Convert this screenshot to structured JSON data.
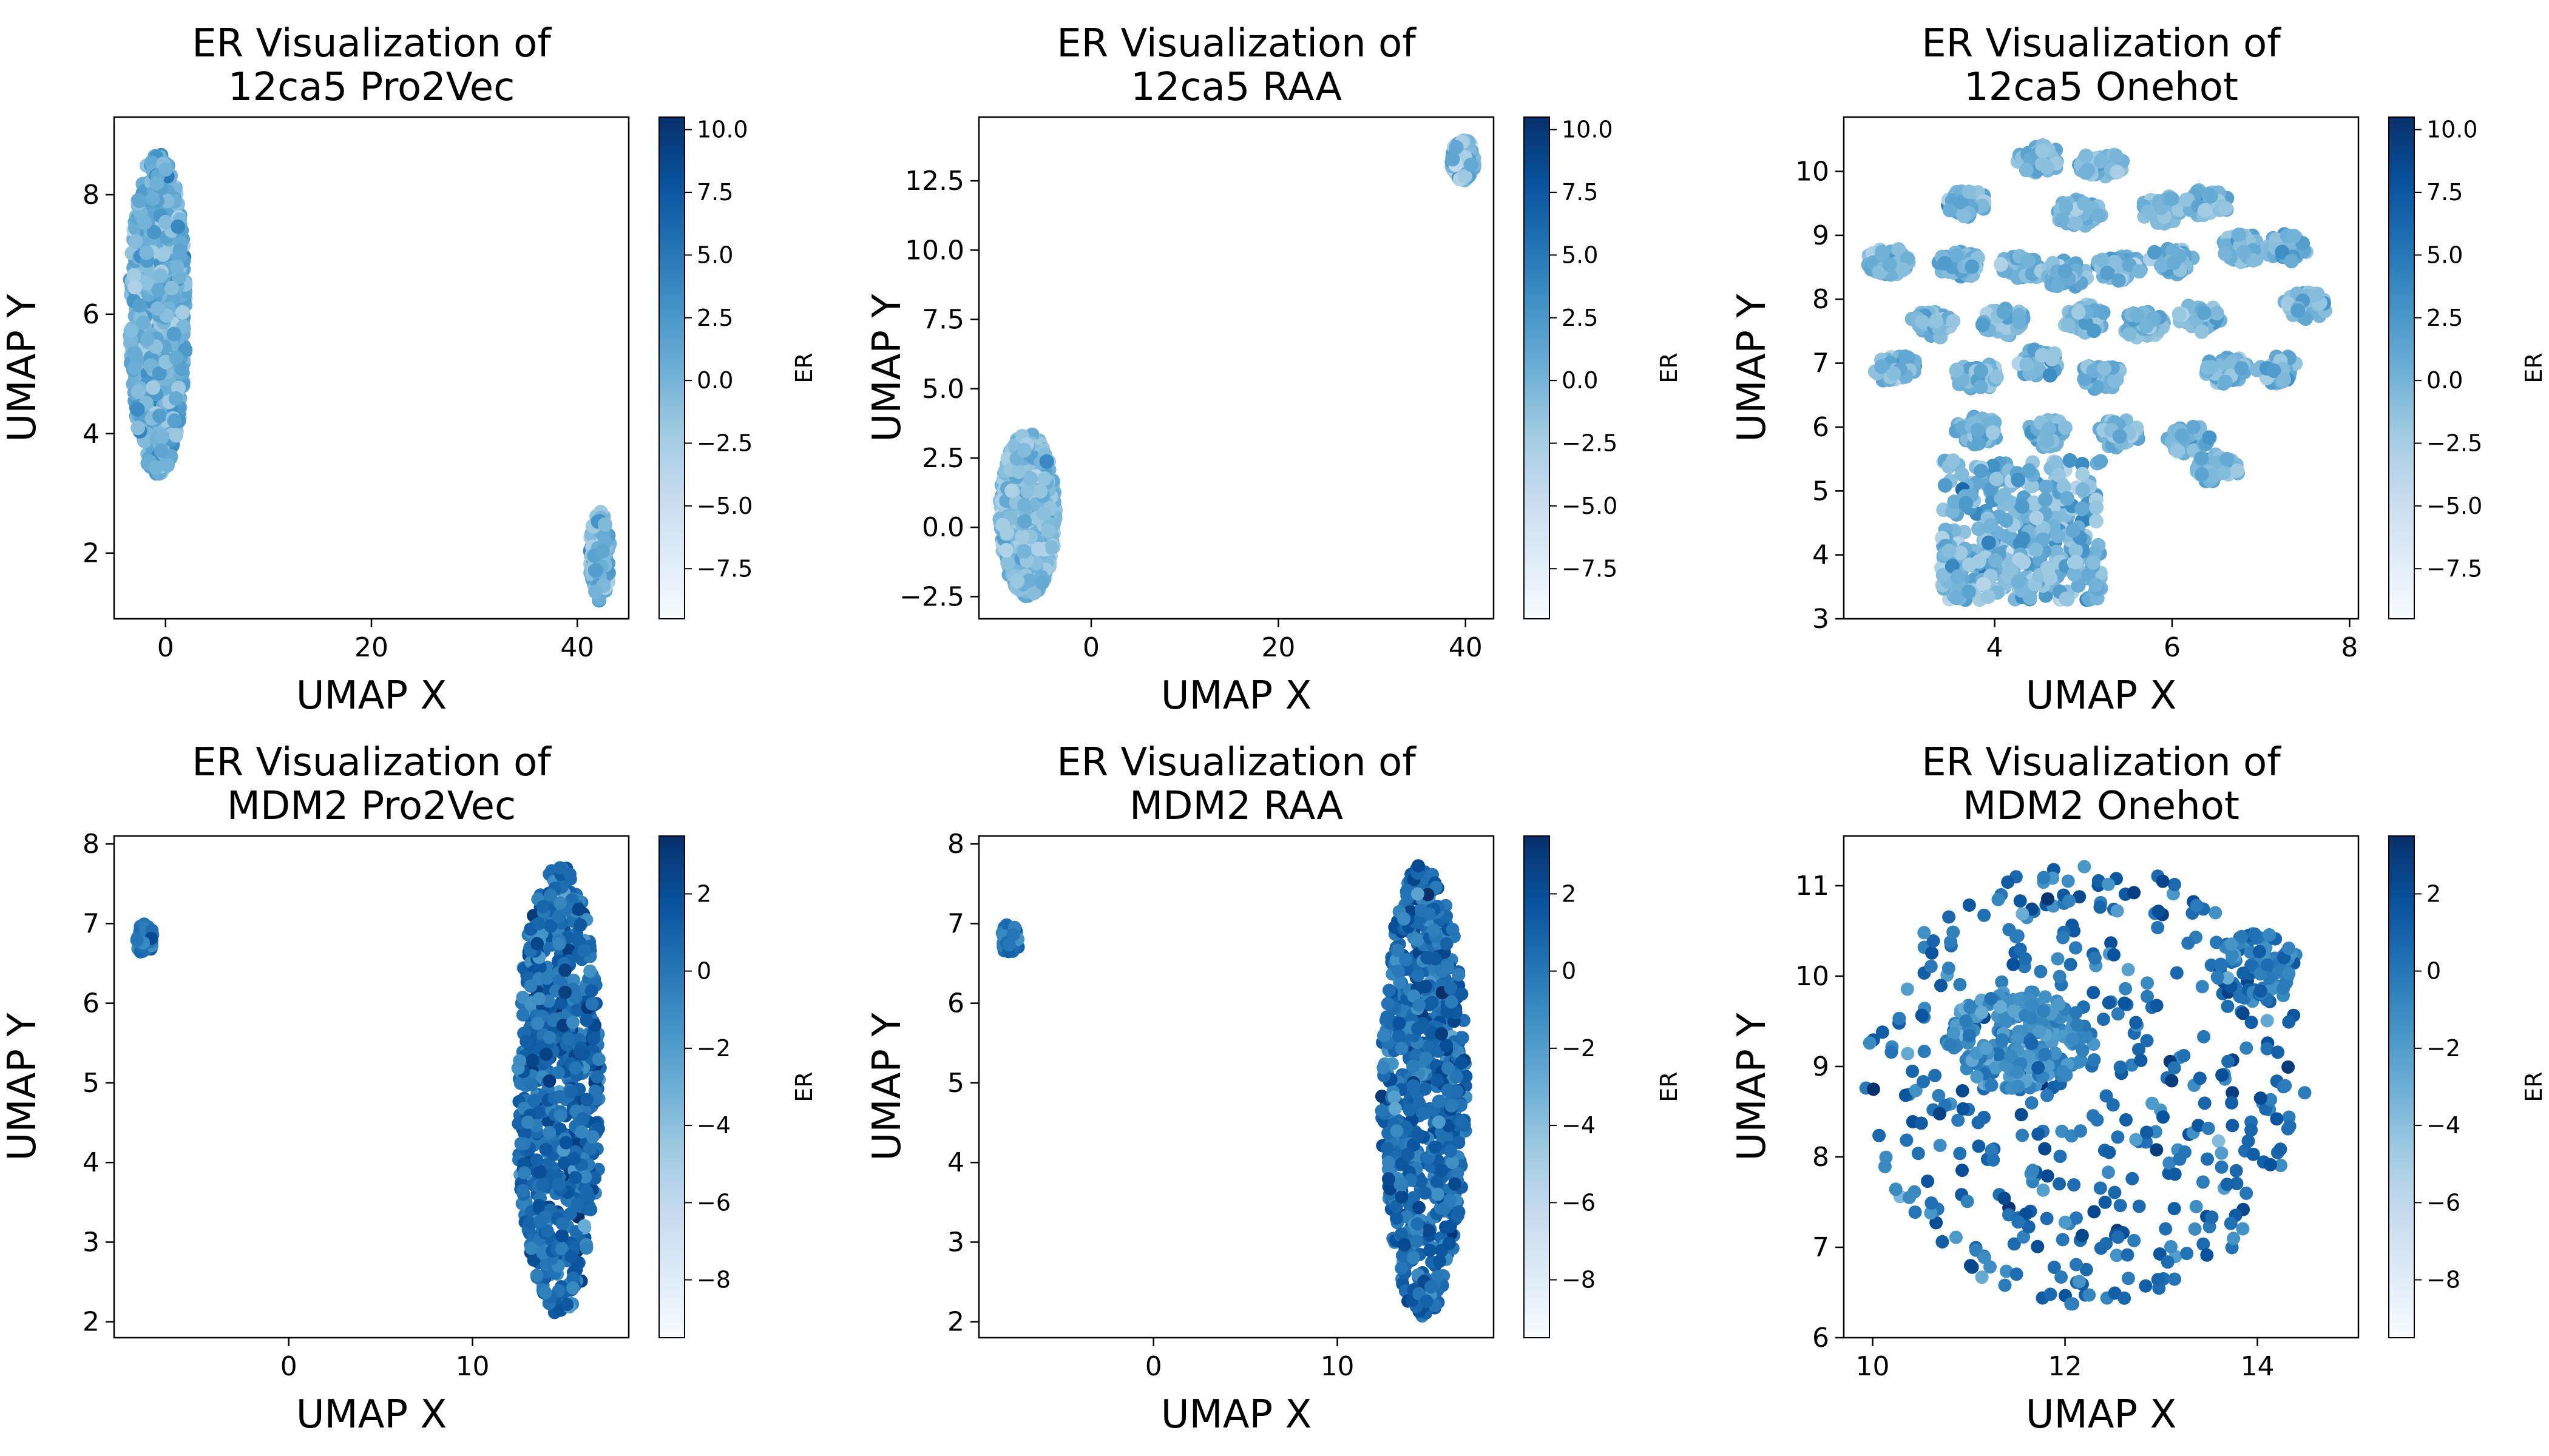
{
  "figure": {
    "colormap": [
      "#f7fbff",
      "#deebf7",
      "#c6dbef",
      "#9ecae1",
      "#6baed6",
      "#4292c6",
      "#2171b5",
      "#08519c",
      "#08306b"
    ]
  },
  "chart_data": [
    {
      "type": "scatter",
      "title_lines": [
        "ER Visualization of",
        "12ca5 Pro2Vec"
      ],
      "xlabel": "UMAP X",
      "ylabel": "UMAP Y",
      "xlim": [
        -5,
        45
      ],
      "ylim": [
        0.9,
        9.3
      ],
      "xticks": [
        0,
        20,
        40
      ],
      "yticks": [
        2,
        4,
        6,
        8
      ],
      "colorbar": {
        "label": "ER",
        "min": -9.5,
        "max": 10.5,
        "ticks": [
          -7.5,
          -5.0,
          -2.5,
          0.0,
          2.5,
          5.0,
          7.5,
          10.0
        ]
      },
      "clusters": [
        {
          "x": [
            -3.5,
            2
          ],
          "y": [
            3.3,
            8.7
          ],
          "count": 900,
          "er_mean": 0.5,
          "er_sd": 1.5,
          "seed": 11
        },
        {
          "x": [
            41.2,
            43.2
          ],
          "y": [
            1.2,
            2.7
          ],
          "count": 150,
          "er_mean": 0.3,
          "er_sd": 1.5,
          "seed": 12
        }
      ]
    },
    {
      "type": "scatter",
      "title_lines": [
        "ER Visualization of",
        "12ca5 RAA"
      ],
      "xlabel": "UMAP X",
      "ylabel": "UMAP Y",
      "xlim": [
        -12,
        43
      ],
      "ylim": [
        -3.3,
        14.8
      ],
      "xticks": [
        0,
        20,
        40
      ],
      "yticks": [
        -2.5,
        0.0,
        2.5,
        5.0,
        7.5,
        10.0,
        12.5
      ],
      "colorbar": {
        "label": "ER",
        "min": -9.5,
        "max": 10.5,
        "ticks": [
          -7.5,
          -5.0,
          -2.5,
          0.0,
          2.5,
          5.0,
          7.5,
          10.0
        ]
      },
      "clusters": [
        {
          "x": [
            -9.8,
            -3.8
          ],
          "y": [
            -2.5,
            3.4
          ],
          "count": 900,
          "er_mean": -0.5,
          "er_sd": 1.3,
          "seed": 21
        },
        {
          "x": [
            38.5,
            41
          ],
          "y": [
            12.5,
            14
          ],
          "count": 120,
          "er_mean": -0.5,
          "er_sd": 1.5,
          "seed": 22
        }
      ]
    },
    {
      "type": "scatter",
      "title_lines": [
        "ER Visualization of",
        "12ca5 Onehot"
      ],
      "xlabel": "UMAP X",
      "ylabel": "UMAP Y",
      "xlim": [
        2.3,
        8.1
      ],
      "ylim": [
        3.0,
        10.85
      ],
      "xticks": [
        4,
        6,
        8
      ],
      "yticks": [
        3,
        4,
        5,
        6,
        7,
        8,
        9,
        10
      ],
      "colorbar": {
        "label": "ER",
        "min": -9.5,
        "max": 10.5,
        "ticks": [
          -7.5,
          -5.0,
          -2.5,
          0.0,
          2.5,
          5.0,
          7.5,
          10.0
        ]
      },
      "blob_centers": [
        [
          4.5,
          10.2
        ],
        [
          5.2,
          10.1
        ],
        [
          3.7,
          9.5
        ],
        [
          4.95,
          9.35
        ],
        [
          5.9,
          9.4
        ],
        [
          6.4,
          9.5
        ],
        [
          2.8,
          8.6
        ],
        [
          3.6,
          8.55
        ],
        [
          4.3,
          8.5
        ],
        [
          4.8,
          8.4
        ],
        [
          5.4,
          8.5
        ],
        [
          6.0,
          8.6
        ],
        [
          6.8,
          8.8
        ],
        [
          7.3,
          8.8
        ],
        [
          3.3,
          7.6
        ],
        [
          4.1,
          7.65
        ],
        [
          5.0,
          7.7
        ],
        [
          5.7,
          7.6
        ],
        [
          6.3,
          7.7
        ],
        [
          7.5,
          7.9
        ],
        [
          2.9,
          6.9
        ],
        [
          3.8,
          6.8
        ],
        [
          4.5,
          7.0
        ],
        [
          5.2,
          6.8
        ],
        [
          6.6,
          6.9
        ],
        [
          7.2,
          6.9
        ],
        [
          3.8,
          5.95
        ],
        [
          4.6,
          5.9
        ],
        [
          5.4,
          5.9
        ],
        [
          6.2,
          5.8
        ],
        [
          6.5,
          5.35
        ],
        [
          4.0,
          4.0
        ],
        [
          4.6,
          4.6
        ]
      ],
      "blob_count": 45,
      "blob_radius": 0.22,
      "scatter_region": {
        "x": [
          3.4,
          5.2
        ],
        "y": [
          3.3,
          5.5
        ],
        "count": 380
      },
      "er_mean": 0.0,
      "er_sd": 1.8,
      "seed": 31
    },
    {
      "type": "scatter",
      "title_lines": [
        "ER Visualization of",
        "MDM2 Pro2Vec"
      ],
      "xlabel": "UMAP X",
      "ylabel": "UMAP Y",
      "xlim": [
        -9.5,
        18.5
      ],
      "ylim": [
        1.8,
        8.1
      ],
      "xticks": [
        0,
        10
      ],
      "yticks": [
        2,
        3,
        4,
        5,
        6,
        7,
        8
      ],
      "colorbar": {
        "label": "ER",
        "min": -9.5,
        "max": 3.5,
        "ticks": [
          -8,
          -6,
          -4,
          -2,
          0,
          2
        ]
      },
      "clusters": [
        {
          "x": [
            -8.3,
            -7.3
          ],
          "y": [
            6.6,
            7.0
          ],
          "count": 40,
          "er_mean": 0.0,
          "er_sd": 0.8,
          "seed": 41
        },
        {
          "shape": "ellipse",
          "cx": 14.7,
          "cy": 4.9,
          "rx": 2.3,
          "ry": 2.85,
          "count": 750,
          "er_mean": 0.6,
          "er_sd": 1.1,
          "seed": 42
        }
      ]
    },
    {
      "type": "scatter",
      "title_lines": [
        "ER Visualization of",
        "MDM2 RAA"
      ],
      "xlabel": "UMAP X",
      "ylabel": "UMAP Y",
      "xlim": [
        -9.5,
        18.5
      ],
      "ylim": [
        1.8,
        8.1
      ],
      "xticks": [
        0,
        10
      ],
      "yticks": [
        2,
        3,
        4,
        5,
        6,
        7,
        8
      ],
      "colorbar": {
        "label": "ER",
        "min": -9.5,
        "max": 3.5,
        "ticks": [
          -8,
          -6,
          -4,
          -2,
          0,
          2
        ]
      },
      "clusters": [
        {
          "x": [
            -8.3,
            -7.3
          ],
          "y": [
            6.6,
            7.0
          ],
          "count": 40,
          "er_mean": 0.0,
          "er_sd": 0.8,
          "seed": 51
        },
        {
          "shape": "ellipse",
          "cx": 14.7,
          "cy": 4.9,
          "rx": 2.3,
          "ry": 2.85,
          "count": 750,
          "er_mean": 0.6,
          "er_sd": 1.1,
          "seed": 52
        }
      ]
    },
    {
      "type": "scatter",
      "title_lines": [
        "ER Visualization of",
        "MDM2 Onehot"
      ],
      "xlabel": "UMAP X",
      "ylabel": "UMAP Y",
      "xlim": [
        9.7,
        15.05
      ],
      "ylim": [
        6.0,
        11.55
      ],
      "xticks": [
        10,
        12,
        14
      ],
      "yticks": [
        6,
        7,
        8,
        9,
        10,
        11
      ],
      "colorbar": {
        "label": "ER",
        "min": -9.5,
        "max": 3.5,
        "ticks": [
          -8,
          -6,
          -4,
          -2,
          0,
          2
        ]
      },
      "clusters": [
        {
          "shape": "ellipse",
          "cx": 12.2,
          "cy": 8.8,
          "rx": 2.3,
          "ry": 2.45,
          "count": 420,
          "er_mean": 0.3,
          "er_sd": 1.2,
          "seed": 61
        },
        {
          "shape": "ellipse",
          "cx": 11.5,
          "cy": 9.3,
          "rx": 0.75,
          "ry": 0.55,
          "count": 220,
          "er_mean": -1.2,
          "er_sd": 0.9,
          "seed": 62
        },
        {
          "shape": "ellipse",
          "cx": 14.0,
          "cy": 10.1,
          "rx": 0.45,
          "ry": 0.4,
          "count": 90,
          "er_mean": 0.0,
          "er_sd": 1.0,
          "seed": 63
        }
      ]
    }
  ]
}
